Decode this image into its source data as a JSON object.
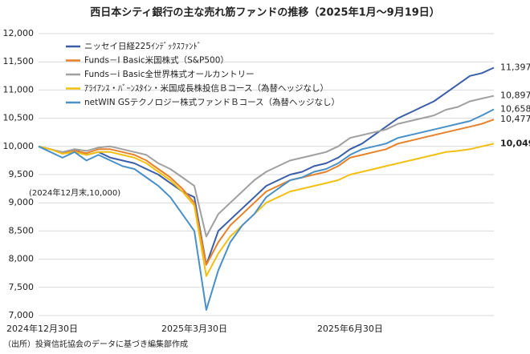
{
  "chart_data": {
    "type": "line",
    "title": "西日本シティ銀行の主な売れ筋ファンドの推移（2025年1月～9月19日）",
    "annotation": "(2024年12月末,10,000)",
    "source": "（出所）投資信託協会のデータに基づき編集部作成",
    "categories": [
      "2024年12月30日",
      null,
      null,
      null,
      null,
      null,
      null,
      null,
      null,
      null,
      null,
      null,
      null,
      "2025年3月30日",
      null,
      null,
      null,
      null,
      null,
      null,
      null,
      null,
      null,
      null,
      null,
      null,
      "2025年6月30日",
      null,
      null,
      null,
      null,
      null,
      null,
      null,
      null,
      null,
      null,
      null,
      null
    ],
    "ylim": [
      7000,
      12000
    ],
    "yticks": [
      {
        "value": 7000,
        "label": "7,000"
      },
      {
        "value": 7500,
        "label": "7,500"
      },
      {
        "value": 8000,
        "label": "8,000"
      },
      {
        "value": 8500,
        "label": "8,500"
      },
      {
        "value": 9000,
        "label": "9,000"
      },
      {
        "value": 9500,
        "label": "9,500"
      },
      {
        "value": 10000,
        "label": "10,000"
      },
      {
        "value": 10500,
        "label": "10,500"
      },
      {
        "value": 11000,
        "label": "11,000"
      },
      {
        "value": 11500,
        "label": "11,500"
      },
      {
        "value": 12000,
        "label": "12,000"
      }
    ],
    "grid": true,
    "legend": "top-left",
    "series": [
      {
        "name": "ニッセイ日経225ｲﾝﾃﾞｯｸｽﾌｧﾝﾄﾞ",
        "color": "#3b5ea8",
        "end_label": "11,397",
        "values": [
          10000,
          9950,
          9880,
          9950,
          9850,
          9900,
          9800,
          9750,
          9700,
          9600,
          9500,
          9350,
          9200,
          9100,
          7900,
          8500,
          8700,
          8900,
          9100,
          9300,
          9400,
          9500,
          9550,
          9650,
          9700,
          9800,
          9950,
          10050,
          10200,
          10350,
          10500,
          10600,
          10700,
          10800,
          10950,
          11100,
          11250,
          11300,
          11397
        ]
      },
      {
        "name": "Funds－I Basic米国株式（S&P500）",
        "color": "#e8822a",
        "end_label": "10,477",
        "values": [
          10000,
          9950,
          9880,
          9920,
          9880,
          9950,
          9950,
          9900,
          9850,
          9750,
          9600,
          9450,
          9250,
          9000,
          7900,
          8300,
          8600,
          8800,
          9000,
          9200,
          9300,
          9400,
          9450,
          9500,
          9550,
          9650,
          9800,
          9850,
          9900,
          9950,
          10050,
          10100,
          10150,
          10200,
          10250,
          10300,
          10350,
          10400,
          10477
        ]
      },
      {
        "name": "Funds－i Basic全世界株式オールカントリー",
        "color": "#a0a0a0",
        "end_label": "10,897",
        "values": [
          10000,
          9950,
          9900,
          9950,
          9920,
          9980,
          10000,
          9950,
          9900,
          9850,
          9700,
          9600,
          9450,
          9300,
          8400,
          8800,
          9000,
          9200,
          9400,
          9550,
          9650,
          9750,
          9800,
          9850,
          9900,
          10000,
          10150,
          10200,
          10250,
          10300,
          10400,
          10450,
          10500,
          10550,
          10650,
          10700,
          10800,
          10850,
          10897
        ]
      },
      {
        "name": "ｱﾗｲｱﾝｽ・ﾊﾞｰﾝｽﾀｲﾝ・米国成長株投信Ｂコース（為替ヘッジなし）",
        "color": "#f2c010",
        "end_label": "10,049",
        "values": [
          10000,
          9950,
          9870,
          9900,
          9850,
          9900,
          9900,
          9850,
          9800,
          9700,
          9550,
          9400,
          9200,
          8950,
          7700,
          8100,
          8400,
          8600,
          8800,
          9000,
          9100,
          9200,
          9250,
          9300,
          9350,
          9400,
          9500,
          9550,
          9600,
          9650,
          9700,
          9750,
          9800,
          9850,
          9900,
          9920,
          9950,
          10000,
          10049
        ]
      },
      {
        "name": "netWIN GSテクノロジー株式ファンドＢコース（為替ヘッジなし）",
        "color": "#4a90c8",
        "end_label": "10,658",
        "values": [
          10000,
          9900,
          9800,
          9900,
          9750,
          9850,
          9750,
          9650,
          9600,
          9450,
          9300,
          9100,
          8800,
          8500,
          7100,
          7800,
          8300,
          8600,
          8800,
          9100,
          9250,
          9400,
          9450,
          9550,
          9600,
          9700,
          9850,
          9950,
          10000,
          10050,
          10150,
          10200,
          10250,
          10300,
          10350,
          10400,
          10450,
          10550,
          10658
        ]
      }
    ]
  }
}
